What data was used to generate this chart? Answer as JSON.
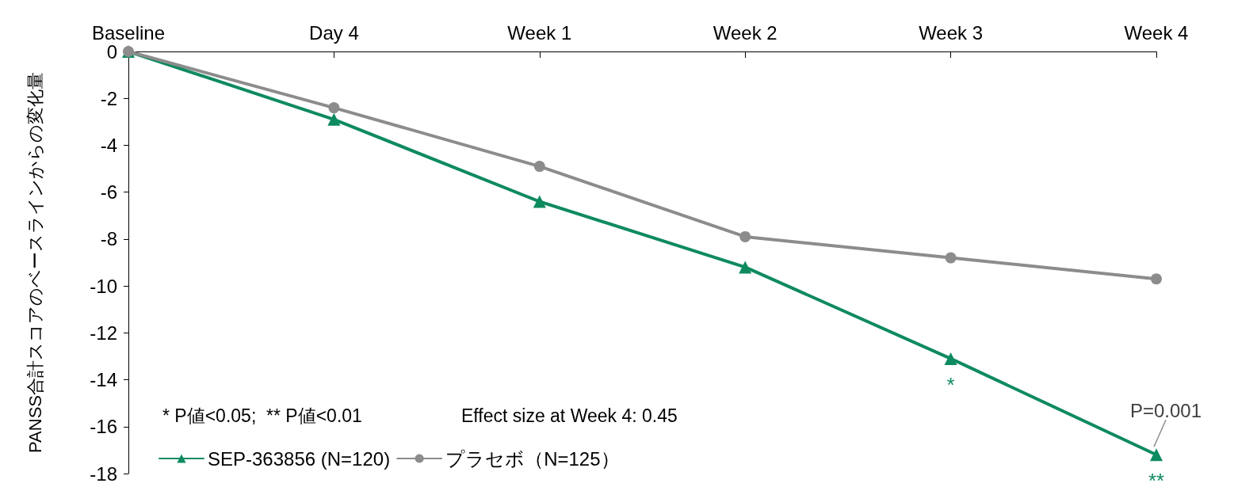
{
  "chart_data": {
    "type": "line",
    "ylabel": "PANSS合計スコアのベースラインからの変化量",
    "categories": [
      "Baseline",
      "Day 4",
      "Week 1",
      "Week 2",
      "Week 3",
      "Week 4"
    ],
    "series": [
      {
        "name": "SEP-363856 (N=120)",
        "color": "#0e8a5f",
        "marker": "triangle",
        "values": [
          0,
          -2.9,
          -6.4,
          -9.2,
          -13.1,
          -17.2
        ]
      },
      {
        "name": "プラセボ（N=125）",
        "color": "#8c8c8c",
        "marker": "circle",
        "values": [
          0,
          -2.4,
          -4.9,
          -7.9,
          -8.8,
          -9.7
        ]
      }
    ],
    "ylim": [
      -18,
      0
    ],
    "yticks": [
      0,
      -2,
      -4,
      -6,
      -8,
      -10,
      -12,
      -14,
      -16,
      -18
    ],
    "grid": false,
    "legend": "bottom left",
    "line_style": "solid",
    "annotations": [
      "* P値<0.05;  ** P値<0.01",
      "Effect size at Week 4: 0.45",
      {
        "text": "*",
        "x": "Week 3",
        "y": -13.1
      },
      {
        "text": "**",
        "x": "Week 4",
        "y": -17.2
      },
      {
        "text": "P=0.001",
        "x": "Week 4",
        "y": -17.2
      }
    ]
  }
}
